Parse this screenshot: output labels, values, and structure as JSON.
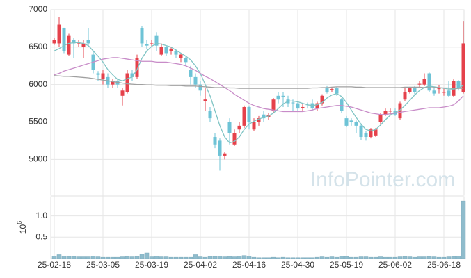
{
  "chart_data": {
    "type": "candlestick",
    "watermark": "InfoPointer.com",
    "categories": [
      "25-02-18",
      null,
      null,
      null,
      null,
      null,
      null,
      null,
      null,
      null,
      "25-03-05",
      null,
      null,
      null,
      null,
      null,
      null,
      null,
      null,
      null,
      "25-03-19",
      null,
      null,
      null,
      null,
      null,
      null,
      null,
      null,
      null,
      "25-04-02",
      null,
      null,
      null,
      null,
      null,
      null,
      null,
      null,
      null,
      "25-04-16",
      null,
      null,
      null,
      null,
      null,
      null,
      null,
      null,
      null,
      "25-04-30",
      null,
      null,
      null,
      null,
      null,
      null,
      null,
      null,
      null,
      "25-05-19",
      null,
      null,
      null,
      null,
      null,
      null,
      null,
      null,
      null,
      "25-06-02",
      null,
      null,
      null,
      null,
      null,
      null,
      null,
      null,
      null,
      "25-06-18",
      null,
      null,
      null,
      null
    ],
    "open": [
      6550,
      6550,
      6750,
      6400,
      6600,
      6550,
      6500,
      6600,
      6400,
      6150,
      6080,
      6100,
      6000,
      6050,
      5850,
      5900,
      6150,
      6100,
      6750,
      6540,
      6550,
      6650,
      6400,
      6500,
      6450,
      6450,
      6350,
      6350,
      6200,
      6100,
      6000,
      5780,
      5650,
      5300,
      5250,
      5050,
      5500,
      5200,
      5400,
      5450,
      5700,
      5400,
      5500,
      5600,
      5570,
      5650,
      5850,
      5850,
      5800,
      5760,
      5750,
      5700,
      5720,
      5750,
      5680,
      5750,
      5950,
      5930,
      5950,
      5800,
      5550,
      5520,
      5500,
      5450,
      5350,
      5300,
      5320,
      5500,
      5600,
      5640,
      5650,
      5550,
      5800,
      5900,
      5950,
      6000,
      6000,
      6150,
      5920,
      5940,
      5900,
      5920,
      5850,
      6050,
      5900
    ],
    "high": [
      6620,
      6900,
      6760,
      6680,
      6620,
      6600,
      6600,
      6750,
      6450,
      6180,
      6200,
      6150,
      6080,
      6080,
      5950,
      6200,
      6200,
      6400,
      6780,
      6600,
      6600,
      6700,
      6550,
      6520,
      6500,
      6470,
      6420,
      6380,
      6250,
      6150,
      6050,
      5950,
      5700,
      5350,
      5280,
      5100,
      5550,
      5400,
      5500,
      5720,
      5720,
      5550,
      5580,
      5650,
      5620,
      5820,
      5900,
      5900,
      5850,
      5800,
      5780,
      5750,
      5760,
      5800,
      5770,
      5870,
      5980,
      5970,
      5970,
      5820,
      5580,
      5550,
      5520,
      5480,
      5380,
      5420,
      5420,
      5620,
      5680,
      5680,
      5680,
      5770,
      5950,
      5970,
      5980,
      6050,
      6150,
      6160,
      5950,
      5990,
      5950,
      6050,
      6070,
      6060,
      6850
    ],
    "low": [
      6530,
      6500,
      6420,
      6380,
      6350,
      6500,
      6350,
      6500,
      6150,
      6050,
      6000,
      5950,
      5950,
      5950,
      5720,
      5880,
      6050,
      6080,
      6500,
      6480,
      6500,
      6450,
      6380,
      6380,
      6400,
      6350,
      6300,
      6250,
      6000,
      5950,
      5850,
      5650,
      5500,
      5150,
      4850,
      5000,
      5200,
      5180,
      5350,
      5420,
      5400,
      5380,
      5450,
      5500,
      5530,
      5620,
      5750,
      5700,
      5700,
      5650,
      5650,
      5650,
      5680,
      5650,
      5650,
      5720,
      5880,
      5900,
      5850,
      5620,
      5430,
      5450,
      5350,
      5260,
      5250,
      5280,
      5300,
      5450,
      5580,
      5600,
      5580,
      5530,
      5780,
      5880,
      5870,
      5960,
      5980,
      5900,
      5850,
      5880,
      5850,
      5830,
      5830,
      5920,
      5880
    ],
    "close": [
      6600,
      6800,
      6450,
      6650,
      6550,
      6550,
      6550,
      6550,
      6200,
      6130,
      6150,
      6000,
      6050,
      6000,
      5920,
      6150,
      6100,
      6350,
      6550,
      6520,
      6550,
      6520,
      6500,
      6420,
      6480,
      6400,
      6400,
      6300,
      6100,
      6000,
      5920,
      5800,
      5550,
      5200,
      5050,
      5080,
      5350,
      5350,
      5450,
      5700,
      5500,
      5500,
      5550,
      5550,
      5590,
      5800,
      5800,
      5830,
      5750,
      5750,
      5680,
      5700,
      5710,
      5680,
      5750,
      5850,
      5900,
      5940,
      5880,
      5650,
      5450,
      5500,
      5450,
      5300,
      5300,
      5400,
      5400,
      5600,
      5650,
      5650,
      5600,
      5750,
      5900,
      5950,
      5900,
      6010,
      6080,
      5920,
      5880,
      5950,
      5900,
      5850,
      6050,
      5950,
      6550
    ],
    "up_color": "#e5414b",
    "down_color": "#6ec3d6",
    "series": [
      {
        "color": "#7fc4c4",
        "values": [
          6450,
          6480,
          6520,
          6550,
          6560,
          6560,
          6550,
          6520,
          6450,
          6380,
          6300,
          6200,
          6130,
          6070,
          6050,
          6080,
          6100,
          6200,
          6350,
          6450,
          6510,
          6550,
          6540,
          6520,
          6500,
          6460,
          6420,
          6380,
          6330,
          6250,
          6150,
          6000,
          5850,
          5650,
          5450,
          5300,
          5220,
          5240,
          5300,
          5400,
          5470,
          5510,
          5540,
          5560,
          5580,
          5620,
          5680,
          5740,
          5780,
          5780,
          5770,
          5750,
          5730,
          5720,
          5730,
          5760,
          5820,
          5860,
          5880,
          5840,
          5760,
          5660,
          5560,
          5470,
          5400,
          5380,
          5400,
          5460,
          5530,
          5590,
          5630,
          5660,
          5720,
          5790,
          5860,
          5920,
          5960,
          5980,
          5970,
          5960,
          5950,
          5940,
          5940,
          5950,
          5990
        ]
      },
      {
        "color": "#c88cc8",
        "values": [
          6130,
          6150,
          6180,
          6200,
          6220,
          6240,
          6260,
          6280,
          6300,
          6320,
          6340,
          6350,
          6360,
          6360,
          6350,
          6340,
          6330,
          6320,
          6310,
          6310,
          6310,
          6300,
          6300,
          6300,
          6290,
          6280,
          6270,
          6250,
          6220,
          6190,
          6150,
          6110,
          6080,
          6040,
          6000,
          5960,
          5920,
          5870,
          5830,
          5790,
          5750,
          5720,
          5700,
          5680,
          5670,
          5660,
          5650,
          5640,
          5640,
          5640,
          5640,
          5640,
          5650,
          5660,
          5680,
          5690,
          5700,
          5710,
          5720,
          5720,
          5710,
          5700,
          5680,
          5660,
          5640,
          5620,
          5610,
          5600,
          5600,
          5610,
          5620,
          5630,
          5640,
          5650,
          5660,
          5670,
          5680,
          5690,
          5690,
          5690,
          5700,
          5710,
          5730,
          5780,
          5850
        ]
      },
      {
        "color": "#a0a0a0",
        "values": [
          6120,
          6115,
          6110,
          6110,
          6105,
          6100,
          6095,
          6090,
          6080,
          6070,
          6060,
          6050,
          6040,
          6030,
          6020,
          6010,
          6005,
          6000,
          6000,
          5995,
          5995,
          5990,
          5990,
          5990,
          5985,
          5985,
          5985,
          5980,
          5980,
          5980,
          5975,
          5970,
          5965,
          5960,
          5960,
          5960,
          5955,
          5955,
          5950,
          5950,
          5950,
          5950,
          5950,
          5950,
          5950,
          5950,
          5950,
          5950,
          5950,
          5950,
          5950,
          5950,
          5950,
          5955,
          5955,
          5960,
          5960,
          5965,
          5970,
          5970,
          5970,
          5970,
          5965,
          5965,
          5960,
          5960,
          5960,
          5960,
          5960,
          5960,
          5960,
          5960,
          5965,
          5965,
          5965,
          5965,
          5960,
          5960,
          5960,
          5960,
          5955,
          5955,
          5950,
          5950,
          5950
        ]
      }
    ],
    "ylim": [
      4520,
      7000
    ],
    "yticks": [
      5000,
      5500,
      6000,
      6500,
      7000
    ],
    "grid": true,
    "volume": {
      "label": {
        "base": "10",
        "exponent": "6"
      },
      "color": "#8fbccc",
      "values": [
        0.06,
        0.09,
        0.06,
        0.05,
        0.05,
        0.04,
        0.04,
        0.04,
        0.06,
        0.04,
        0.03,
        0.03,
        0.03,
        0.03,
        0.04,
        0.05,
        0.04,
        0.05,
        0.1,
        0.13,
        0.04,
        0.06,
        0.04,
        0.04,
        0.03,
        0.03,
        0.03,
        0.03,
        0.03,
        0.09,
        0.04,
        0.03,
        0.05,
        0.05,
        0.06,
        0.04,
        0.05,
        0.04,
        0.06,
        0.07,
        0.06,
        0.03,
        0.02,
        0.02,
        0.02,
        0.03,
        0.02,
        0.03,
        0.02,
        0.02,
        0.02,
        0.02,
        0.02,
        0.02,
        0.03,
        0.04,
        0.03,
        0.04,
        0.03,
        0.06,
        0.05,
        0.03,
        0.03,
        0.04,
        0.04,
        0.03,
        0.03,
        0.04,
        0.03,
        0.03,
        0.03,
        0.04,
        0.05,
        0.04,
        0.03,
        0.04,
        0.04,
        0.05,
        0.04,
        0.03,
        0.03,
        0.04,
        0.05,
        0.06,
        1.35
      ],
      "ylim": [
        0,
        1.45
      ],
      "yticks": [
        0.5,
        {
          "value": 1,
          "label": "1.0"
        }
      ]
    }
  }
}
